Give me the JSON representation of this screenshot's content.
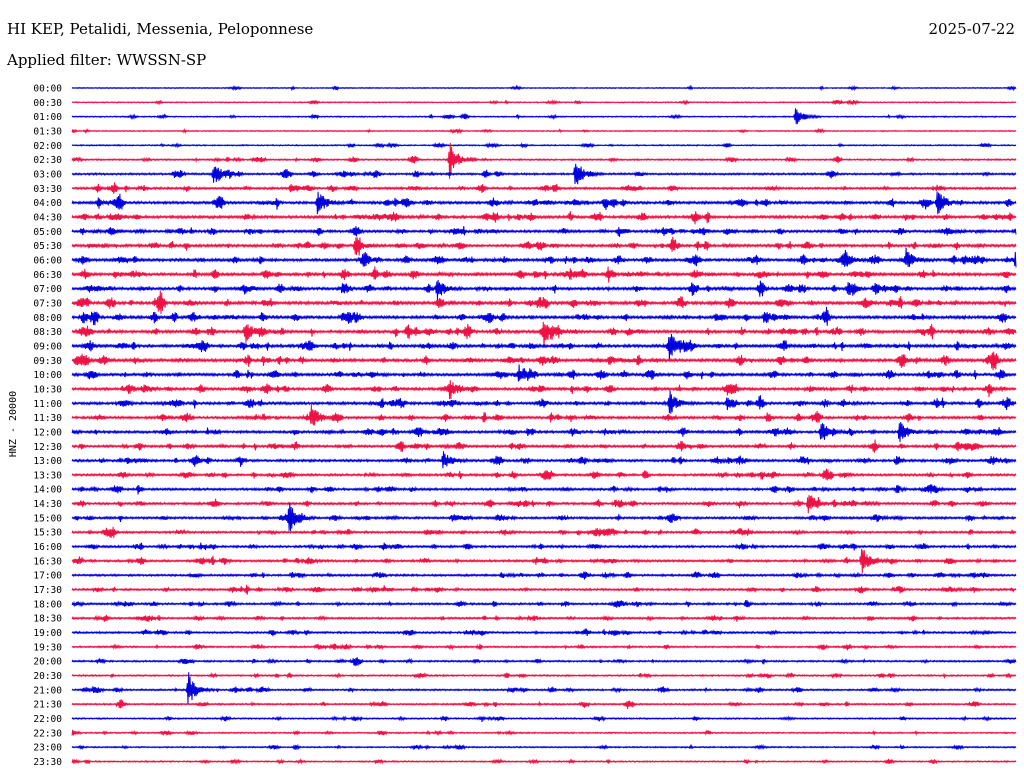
{
  "header": {
    "station": "HI KEP, Petalidi, Messenia, Peloponnese",
    "date": "2025-07-22",
    "filter": "Applied filter: WWSSN-SP"
  },
  "chart_data": {
    "type": "line",
    "chart_kind": "helicorder",
    "ylabel": "HNZ - 20000",
    "row_labels": [
      "00:00",
      "00:30",
      "01:00",
      "01:30",
      "02:00",
      "02:30",
      "03:00",
      "03:30",
      "04:00",
      "04:30",
      "05:00",
      "05:30",
      "06:00",
      "06:30",
      "07:00",
      "07:30",
      "08:00",
      "08:30",
      "09:00",
      "09:30",
      "10:00",
      "10:30",
      "11:00",
      "11:30",
      "12:00",
      "12:30",
      "13:00",
      "13:30",
      "14:00",
      "14:30",
      "15:00",
      "15:30",
      "16:00",
      "16:30",
      "17:00",
      "17:30",
      "18:00",
      "18:30",
      "19:00",
      "19:30",
      "20:00",
      "20:30",
      "21:00",
      "21:30",
      "22:00",
      "22:30",
      "23:00",
      "23:30"
    ],
    "row_minutes": 30,
    "series_colors": [
      "#0000dd",
      "#ee1144"
    ],
    "color_pattern": "alternating blue / red by row",
    "activity_level": [
      0.05,
      0.08,
      0.12,
      0.08,
      0.12,
      0.28,
      0.45,
      0.55,
      0.75,
      0.8,
      0.7,
      0.75,
      0.8,
      0.85,
      0.8,
      0.9,
      0.85,
      0.85,
      0.85,
      0.9,
      0.8,
      0.75,
      0.75,
      0.7,
      0.7,
      0.65,
      0.65,
      0.6,
      0.6,
      0.6,
      0.6,
      0.55,
      0.55,
      0.55,
      0.5,
      0.5,
      0.45,
      0.45,
      0.45,
      0.35,
      0.35,
      0.3,
      0.35,
      0.3,
      0.25,
      0.22,
      0.2,
      0.2
    ],
    "events": [
      {
        "row": 2,
        "minute": 23,
        "amp": 10
      },
      {
        "row": 5,
        "minute": 12,
        "amp": 20
      },
      {
        "row": 6,
        "minute": 4.5,
        "amp": 10
      },
      {
        "row": 6,
        "minute": 16,
        "amp": 12
      },
      {
        "row": 8,
        "minute": 7.8,
        "amp": 14
      },
      {
        "row": 8,
        "minute": 27.5,
        "amp": 14
      },
      {
        "row": 9,
        "minute": 31,
        "amp": 10
      },
      {
        "row": 11,
        "minute": 9,
        "amp": 8
      },
      {
        "row": 12,
        "minute": 24.5,
        "amp": 10
      },
      {
        "row": 12,
        "minute": 26.5,
        "amp": 12
      },
      {
        "row": 12,
        "minute": 30,
        "amp": 14
      },
      {
        "row": 14,
        "minute": 11.6,
        "amp": 12
      },
      {
        "row": 16,
        "minute": 22,
        "amp": 8
      },
      {
        "row": 17,
        "minute": 5.5,
        "amp": 12
      },
      {
        "row": 17,
        "minute": 15,
        "amp": 14
      },
      {
        "row": 18,
        "minute": 19,
        "amp": 12
      },
      {
        "row": 20,
        "minute": 14.2,
        "amp": 10
      },
      {
        "row": 21,
        "minute": 12,
        "amp": 10
      },
      {
        "row": 22,
        "minute": 19,
        "amp": 12
      },
      {
        "row": 23,
        "minute": 7.6,
        "amp": 14
      },
      {
        "row": 24,
        "minute": 23.8,
        "amp": 10
      },
      {
        "row": 24,
        "minute": 26.3,
        "amp": 12
      },
      {
        "row": 26,
        "minute": 11.8,
        "amp": 10
      },
      {
        "row": 30,
        "minute": 6.9,
        "amp": 16
      },
      {
        "row": 29,
        "minute": 23.4,
        "amp": 10
      },
      {
        "row": 33,
        "minute": 25.1,
        "amp": 16
      },
      {
        "row": 42,
        "minute": 3.7,
        "amp": 18
      }
    ]
  }
}
